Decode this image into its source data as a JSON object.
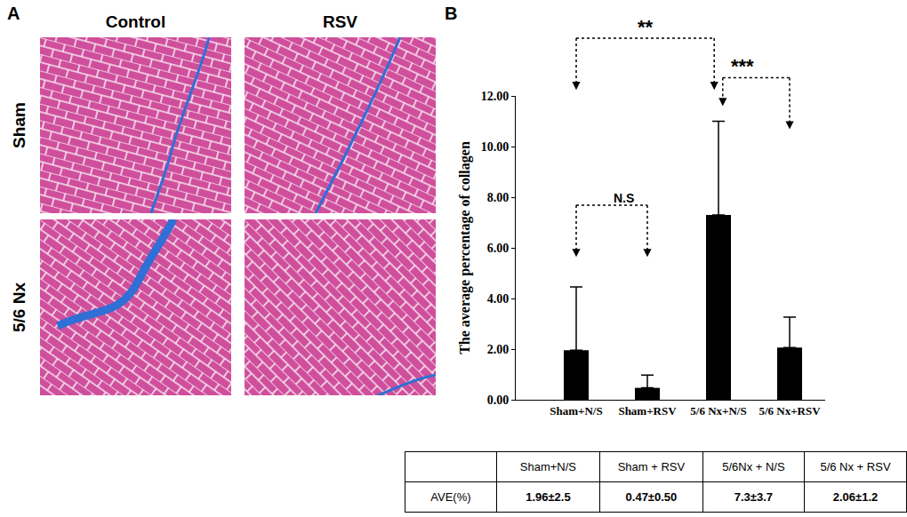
{
  "panel_labels": [
    "A",
    "B"
  ],
  "panel_a": {
    "columns": [
      "Control",
      "RSV"
    ],
    "rows": [
      "Sham",
      "5/6 Nx"
    ]
  },
  "chart_data": {
    "type": "bar",
    "categories": [
      "Sham+N/S",
      "Sham+RSV",
      "5/6 Nx+N/S",
      "5/6 Nx+RSV"
    ],
    "values": [
      1.96,
      0.47,
      7.3,
      2.06
    ],
    "error": [
      2.5,
      0.5,
      3.7,
      1.2
    ],
    "color": "#000000",
    "ylabel": "The average percentage of collagen",
    "ylim": [
      0,
      12
    ],
    "yticks": [
      {
        "value": 0,
        "label": "0.00"
      },
      {
        "value": 2,
        "label": "2.00"
      },
      {
        "value": 4,
        "label": "4.00"
      },
      {
        "value": 6,
        "label": "6.00"
      },
      {
        "value": 8,
        "label": "8.00"
      },
      {
        "value": 10,
        "label": "10.00"
      },
      {
        "value": 12,
        "label": "12.00"
      }
    ],
    "grid": false,
    "annotations": [
      {
        "text": "**",
        "from": 0,
        "to": 2
      },
      {
        "text": "***",
        "from": 2,
        "to": 3
      },
      {
        "text": "N.S",
        "from": 0,
        "to": 1
      }
    ]
  },
  "table": {
    "header": [
      null,
      "Sham+N/S",
      "Sham + RSV",
      "5/6Nx + N/S",
      "5/6 Nx + RSV"
    ],
    "rows": [
      [
        "AVE(%)",
        "1.96±2.5",
        "0.47±0.50",
        "7.3±3.7",
        "2.06±1.2"
      ]
    ]
  }
}
